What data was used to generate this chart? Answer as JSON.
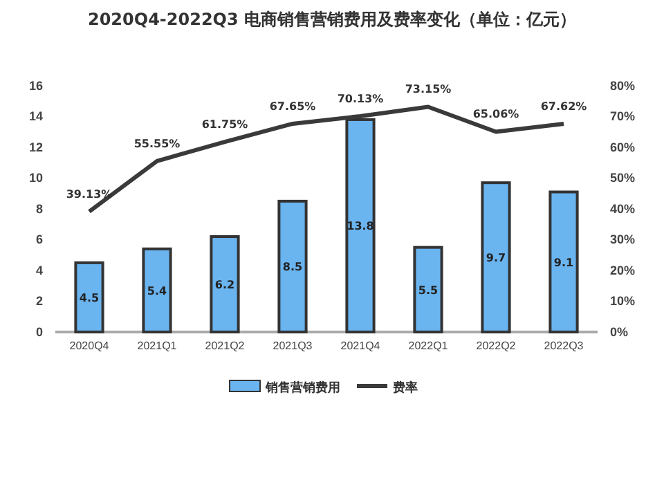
{
  "chart_data": {
    "type": "bar",
    "title": "2020Q4-2022Q3 电商销售营销费用及费率变化（单位：亿元）",
    "categories": [
      "2020Q4",
      "2021Q1",
      "2021Q2",
      "2021Q3",
      "2021Q4",
      "2022Q1",
      "2022Q2",
      "2022Q3"
    ],
    "series": [
      {
        "name": "销售营销费用",
        "color": "#6ab4f0",
        "values": [
          4.5,
          5.4,
          6.2,
          8.5,
          13.8,
          5.5,
          9.7,
          9.1
        ],
        "value_labels": [
          "4.5",
          "5.4",
          "6.2",
          "8.5",
          "13.8",
          "5.5",
          "9.7",
          "9.1"
        ]
      },
      {
        "name": "费率",
        "type": "line",
        "axis": "y2",
        "color": "#3a3a3a",
        "values": [
          39.13,
          55.55,
          61.75,
          67.65,
          70.13,
          73.15,
          65.06,
          67.62
        ],
        "value_labels": [
          "39.13%",
          "55.55%",
          "61.75%",
          "67.65%",
          "70.13%",
          "73.15%",
          "65.06%",
          "67.62%"
        ]
      }
    ],
    "ylim": [
      0,
      16
    ],
    "yticks": [
      0,
      2,
      4,
      6,
      8,
      10,
      12,
      14,
      16
    ],
    "y2lim": [
      0,
      80
    ],
    "y2ticks": [
      {
        "value": 0,
        "label": "0%"
      },
      {
        "value": 10,
        "label": "10%"
      },
      {
        "value": 20,
        "label": "20%"
      },
      {
        "value": 30,
        "label": "30%"
      },
      {
        "value": 40,
        "label": "40%"
      },
      {
        "value": 50,
        "label": "50%"
      },
      {
        "value": 60,
        "label": "60%"
      },
      {
        "value": 70,
        "label": "70%"
      },
      {
        "value": 80,
        "label": "80%"
      }
    ],
    "legend": "bottom",
    "marker": "none",
    "line_style": "solid"
  }
}
